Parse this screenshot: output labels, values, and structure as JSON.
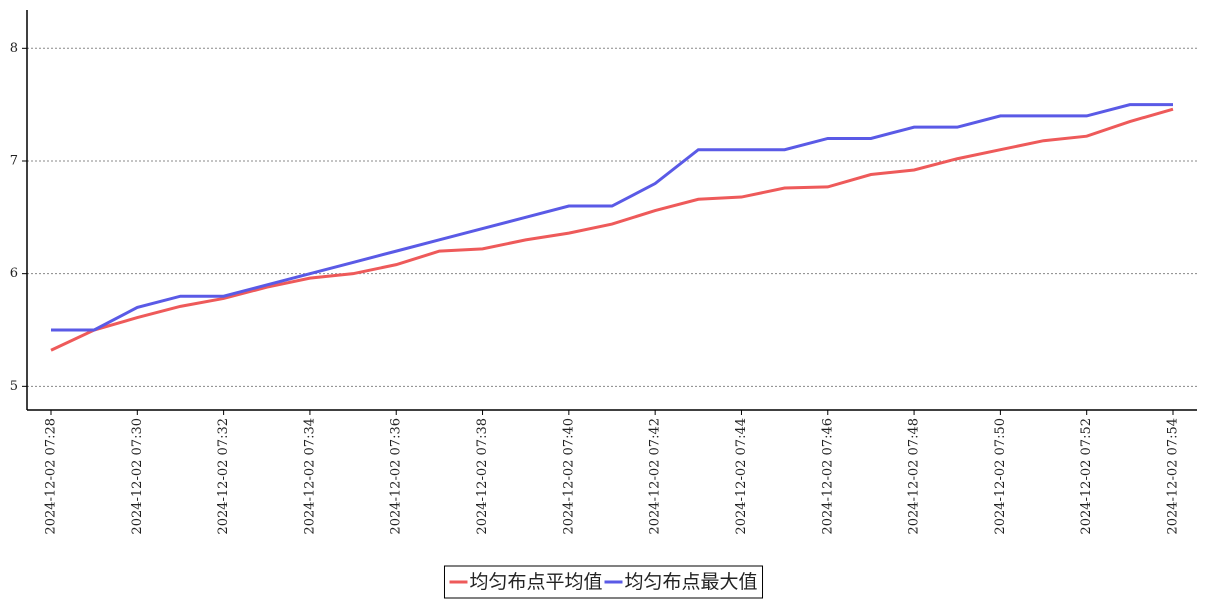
{
  "chart_data": {
    "type": "line",
    "categories": [
      "2024-12-02 07:28",
      null,
      "2024-12-02 07:30",
      null,
      "2024-12-02 07:32",
      null,
      "2024-12-02 07:34",
      null,
      "2024-12-02 07:36",
      null,
      "2024-12-02 07:38",
      null,
      "2024-12-02 07:40",
      null,
      "2024-12-02 07:42",
      null,
      "2024-12-02 07:44",
      null,
      "2024-12-02 07:46",
      null,
      "2024-12-02 07:48",
      null,
      "2024-12-02 07:50",
      null,
      "2024-12-02 07:52",
      null,
      "2024-12-02 07:54"
    ],
    "series": [
      {
        "name": "均匀布点平均值",
        "color": "#ee5a5a",
        "values": [
          5.32,
          5.5,
          5.61,
          5.71,
          5.78,
          5.88,
          5.96,
          6.0,
          6.08,
          6.2,
          6.22,
          6.3,
          6.36,
          6.44,
          6.56,
          6.66,
          6.68,
          6.76,
          6.77,
          6.88,
          6.92,
          7.02,
          7.1,
          7.18,
          7.22,
          7.35,
          7.46
        ]
      },
      {
        "name": "均匀布点最大值",
        "color": "#5a5ae6",
        "values": [
          5.5,
          5.5,
          5.7,
          5.8,
          5.8,
          5.9,
          6.0,
          6.1,
          6.2,
          6.3,
          6.4,
          6.5,
          6.6,
          6.6,
          6.8,
          7.1,
          7.1,
          7.1,
          7.2,
          7.2,
          7.3,
          7.3,
          7.4,
          7.4,
          7.4,
          7.5,
          7.5
        ]
      }
    ],
    "ylim": [
      4.79,
      8.34
    ],
    "yticks": [
      5,
      6,
      7,
      8
    ],
    "grid": true,
    "legend": "bottom"
  }
}
